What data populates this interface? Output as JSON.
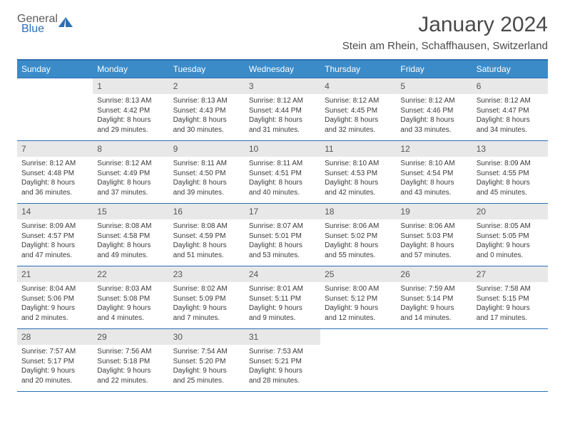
{
  "logo": {
    "text1": "General",
    "text2": "Blue"
  },
  "title": "January 2024",
  "location": "Stein am Rhein, Schaffhausen, Switzerland",
  "colors": {
    "header_bg": "#3b8bc9",
    "header_border": "#2a6fb5",
    "daynum_bg": "#e8e8e8",
    "row_border": "#2a6fb5",
    "text": "#3a3a3a",
    "logo_gray": "#5a5a5a",
    "logo_blue": "#2a6fb5"
  },
  "weekdays": [
    "Sunday",
    "Monday",
    "Tuesday",
    "Wednesday",
    "Thursday",
    "Friday",
    "Saturday"
  ],
  "weeks": [
    [
      {
        "empty": true
      },
      {
        "n": "1",
        "sunrise": "8:13 AM",
        "sunset": "4:42 PM",
        "daylight": "8 hours and 29 minutes."
      },
      {
        "n": "2",
        "sunrise": "8:13 AM",
        "sunset": "4:43 PM",
        "daylight": "8 hours and 30 minutes."
      },
      {
        "n": "3",
        "sunrise": "8:12 AM",
        "sunset": "4:44 PM",
        "daylight": "8 hours and 31 minutes."
      },
      {
        "n": "4",
        "sunrise": "8:12 AM",
        "sunset": "4:45 PM",
        "daylight": "8 hours and 32 minutes."
      },
      {
        "n": "5",
        "sunrise": "8:12 AM",
        "sunset": "4:46 PM",
        "daylight": "8 hours and 33 minutes."
      },
      {
        "n": "6",
        "sunrise": "8:12 AM",
        "sunset": "4:47 PM",
        "daylight": "8 hours and 34 minutes."
      }
    ],
    [
      {
        "n": "7",
        "sunrise": "8:12 AM",
        "sunset": "4:48 PM",
        "daylight": "8 hours and 36 minutes."
      },
      {
        "n": "8",
        "sunrise": "8:12 AM",
        "sunset": "4:49 PM",
        "daylight": "8 hours and 37 minutes."
      },
      {
        "n": "9",
        "sunrise": "8:11 AM",
        "sunset": "4:50 PM",
        "daylight": "8 hours and 39 minutes."
      },
      {
        "n": "10",
        "sunrise": "8:11 AM",
        "sunset": "4:51 PM",
        "daylight": "8 hours and 40 minutes."
      },
      {
        "n": "11",
        "sunrise": "8:10 AM",
        "sunset": "4:53 PM",
        "daylight": "8 hours and 42 minutes."
      },
      {
        "n": "12",
        "sunrise": "8:10 AM",
        "sunset": "4:54 PM",
        "daylight": "8 hours and 43 minutes."
      },
      {
        "n": "13",
        "sunrise": "8:09 AM",
        "sunset": "4:55 PM",
        "daylight": "8 hours and 45 minutes."
      }
    ],
    [
      {
        "n": "14",
        "sunrise": "8:09 AM",
        "sunset": "4:57 PM",
        "daylight": "8 hours and 47 minutes."
      },
      {
        "n": "15",
        "sunrise": "8:08 AM",
        "sunset": "4:58 PM",
        "daylight": "8 hours and 49 minutes."
      },
      {
        "n": "16",
        "sunrise": "8:08 AM",
        "sunset": "4:59 PM",
        "daylight": "8 hours and 51 minutes."
      },
      {
        "n": "17",
        "sunrise": "8:07 AM",
        "sunset": "5:01 PM",
        "daylight": "8 hours and 53 minutes."
      },
      {
        "n": "18",
        "sunrise": "8:06 AM",
        "sunset": "5:02 PM",
        "daylight": "8 hours and 55 minutes."
      },
      {
        "n": "19",
        "sunrise": "8:06 AM",
        "sunset": "5:03 PM",
        "daylight": "8 hours and 57 minutes."
      },
      {
        "n": "20",
        "sunrise": "8:05 AM",
        "sunset": "5:05 PM",
        "daylight": "9 hours and 0 minutes."
      }
    ],
    [
      {
        "n": "21",
        "sunrise": "8:04 AM",
        "sunset": "5:06 PM",
        "daylight": "9 hours and 2 minutes."
      },
      {
        "n": "22",
        "sunrise": "8:03 AM",
        "sunset": "5:08 PM",
        "daylight": "9 hours and 4 minutes."
      },
      {
        "n": "23",
        "sunrise": "8:02 AM",
        "sunset": "5:09 PM",
        "daylight": "9 hours and 7 minutes."
      },
      {
        "n": "24",
        "sunrise": "8:01 AM",
        "sunset": "5:11 PM",
        "daylight": "9 hours and 9 minutes."
      },
      {
        "n": "25",
        "sunrise": "8:00 AM",
        "sunset": "5:12 PM",
        "daylight": "9 hours and 12 minutes."
      },
      {
        "n": "26",
        "sunrise": "7:59 AM",
        "sunset": "5:14 PM",
        "daylight": "9 hours and 14 minutes."
      },
      {
        "n": "27",
        "sunrise": "7:58 AM",
        "sunset": "5:15 PM",
        "daylight": "9 hours and 17 minutes."
      }
    ],
    [
      {
        "n": "28",
        "sunrise": "7:57 AM",
        "sunset": "5:17 PM",
        "daylight": "9 hours and 20 minutes."
      },
      {
        "n": "29",
        "sunrise": "7:56 AM",
        "sunset": "5:18 PM",
        "daylight": "9 hours and 22 minutes."
      },
      {
        "n": "30",
        "sunrise": "7:54 AM",
        "sunset": "5:20 PM",
        "daylight": "9 hours and 25 minutes."
      },
      {
        "n": "31",
        "sunrise": "7:53 AM",
        "sunset": "5:21 PM",
        "daylight": "9 hours and 28 minutes."
      },
      {
        "empty": true
      },
      {
        "empty": true
      },
      {
        "empty": true
      }
    ]
  ],
  "labels": {
    "sunrise": "Sunrise:",
    "sunset": "Sunset:",
    "daylight": "Daylight:"
  }
}
